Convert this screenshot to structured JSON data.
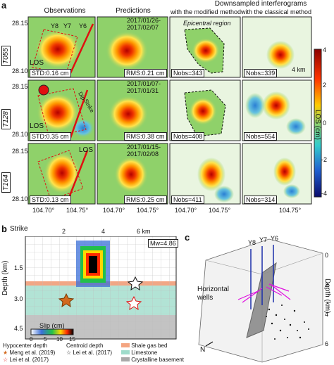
{
  "panel_a": {
    "label": "a",
    "col_obs": "Observations",
    "col_pred": "Predictions",
    "col_down": "Downsampled interferograms",
    "col_mod": "with the modified method",
    "col_cls": "with the classical method",
    "tracks": [
      {
        "name": "T055",
        "dates": "2017/01/26-\n2017/02/07",
        "std": "STD:0.16 cm",
        "rms": "RMS:0.21 cm",
        "nobs_mod": "Nobs=343",
        "nobs_cls": "Nobs=339"
      },
      {
        "name": "T128",
        "dates": "2017/01/07-\n2017/01/31",
        "std": "STD:0.35 cm",
        "rms": "RMS:0.38 cm",
        "nobs_mod": "Nobs=408",
        "nobs_cls": "Nobs=554"
      },
      {
        "name": "T164",
        "dates": "2017/01/15-\n2017/02/08",
        "std": "STD:0.13 cm",
        "rms": "RMS:0.25 cm",
        "nobs_mod": "Nobs=411",
        "nobs_cls": "Nobs=314"
      }
    ],
    "lat_ticks": [
      "28.15",
      "28.10",
      "28.15",
      "28.10",
      "28.15",
      "28.10"
    ],
    "lon_ticks": [
      "104.70°",
      "104.75°",
      "104.70°",
      "104.75°",
      "104.70°",
      "104.75°",
      "104.75°"
    ],
    "epicentral": "Epicentral region",
    "scale": "4 km",
    "los": "LOS",
    "dip": "Dip",
    "strike": "Strike",
    "wells": [
      "Y8",
      "Y7",
      "Y6"
    ],
    "colorbar_title": "LOS (cm)",
    "colorbar_ticks": [
      "4",
      "2",
      "0",
      "-2",
      "-4"
    ]
  },
  "panel_b": {
    "label": "b",
    "strike_label": "Strike",
    "x_ticks": [
      "2",
      "4",
      "6 km"
    ],
    "y_label": "Depth (km)",
    "y_ticks": [
      "1.5",
      "3.0",
      "4.5"
    ],
    "mw": "Mw=4.86",
    "slip_label": "Slip (cm)",
    "slip_ticks": [
      "0",
      "5",
      "10",
      "15"
    ],
    "legend": {
      "hypo_title": "Hypocenter depth",
      "meng": "Meng et al. (2019)",
      "lei_h": "Lei et al. (2017)",
      "centroid_title": "Centroid depth",
      "lei_c": "Lei et al. (2017)",
      "shale": "Shale gas bed",
      "limestone": "Limestone",
      "basement": "Crystalline basement"
    },
    "colors": {
      "shale": "#f4a582",
      "limestone": "#9fdccb",
      "basement": "#a9a9a9"
    }
  },
  "panel_c": {
    "label": "c",
    "wells": [
      "Y8",
      "Y7",
      "Y6"
    ],
    "horizontal_wells": "Horizontal wells",
    "depth_label": "Depth (km)",
    "depth_ticks": [
      "0",
      "2",
      "4",
      "6"
    ],
    "north": "N"
  }
}
